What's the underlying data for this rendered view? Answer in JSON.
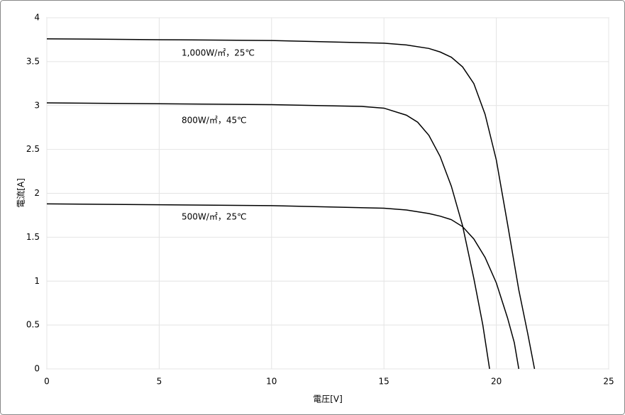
{
  "chart_data": {
    "type": "line",
    "xlabel": "電圧[V]",
    "ylabel": "電流[A]",
    "xlim": [
      0,
      25
    ],
    "xticks": [
      0,
      5,
      10,
      15,
      20,
      25
    ],
    "ylim": [
      0,
      4
    ],
    "yticks": [
      0,
      {
        "value": 0.5,
        "label": "0.5"
      },
      1,
      {
        "value": 1.5,
        "label": "1.5"
      },
      2,
      {
        "value": 2.5,
        "label": "2.5"
      },
      3,
      {
        "value": 3.5,
        "label": "3.5"
      },
      4
    ],
    "grid": true,
    "series": [
      {
        "name": "1,000W/㎡，25℃",
        "color": "#000000",
        "x": [
          0,
          5,
          10,
          15,
          16,
          17,
          17.5,
          18,
          18.5,
          19,
          19.5,
          20,
          20.5,
          21,
          21.4,
          21.7
        ],
        "values": [
          3.76,
          3.75,
          3.74,
          3.71,
          3.69,
          3.65,
          3.61,
          3.55,
          3.44,
          3.25,
          2.9,
          2.38,
          1.65,
          0.9,
          0.4,
          0
        ]
      },
      {
        "name": "800W/㎡，45℃",
        "color": "#000000",
        "x": [
          0,
          5,
          10,
          14,
          15,
          16,
          16.5,
          17,
          17.5,
          18,
          18.5,
          19,
          19.4,
          19.7
        ],
        "values": [
          3.03,
          3.02,
          3.01,
          2.99,
          2.97,
          2.89,
          2.81,
          2.66,
          2.42,
          2.08,
          1.63,
          1.03,
          0.5,
          0
        ]
      },
      {
        "name": "500W/㎡，25℃",
        "color": "#000000",
        "x": [
          0,
          5,
          10,
          15,
          16,
          17,
          17.5,
          18,
          18.5,
          19,
          19.5,
          20,
          20.5,
          20.8,
          21
        ],
        "values": [
          1.88,
          1.87,
          1.86,
          1.83,
          1.81,
          1.77,
          1.74,
          1.7,
          1.62,
          1.48,
          1.27,
          0.98,
          0.58,
          0.3,
          0
        ]
      }
    ]
  }
}
